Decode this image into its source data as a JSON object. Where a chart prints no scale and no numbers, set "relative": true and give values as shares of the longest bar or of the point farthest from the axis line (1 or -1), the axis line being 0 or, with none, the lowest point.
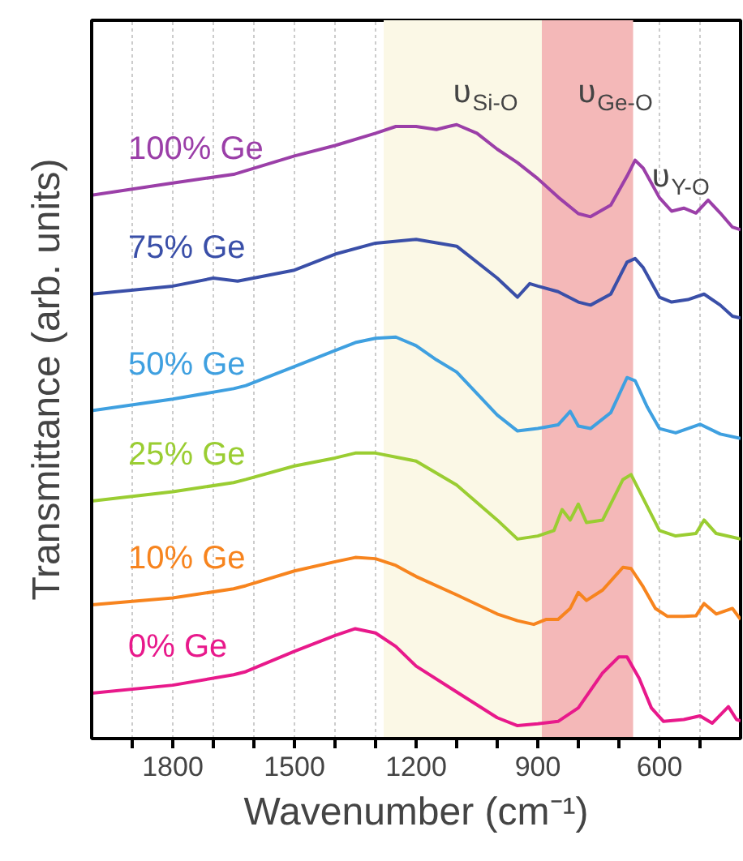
{
  "chart_data": {
    "type": "line",
    "relative": true,
    "xlabel": "Wavenumber (cm⁻¹)",
    "ylabel": "Transmittance (arb. units)",
    "xlim": [
      2000,
      400
    ],
    "xticks": [
      {
        "value": 1900,
        "label": null
      },
      1800,
      {
        "value": 1700,
        "label": null
      },
      {
        "value": 1600,
        "label": null
      },
      1500,
      {
        "value": 1400,
        "label": null
      },
      {
        "value": 1300,
        "label": null
      },
      1200,
      {
        "value": 1100,
        "label": null
      },
      {
        "value": 1000,
        "label": null
      },
      900,
      {
        "value": 800,
        "label": null
      },
      {
        "value": 700,
        "label": null
      },
      600,
      {
        "value": 500,
        "label": null
      }
    ],
    "grid": "x",
    "line_style": "solid",
    "marker": "none",
    "bands": [
      {
        "axis": "x",
        "from": 1280,
        "to": 890,
        "label": "υ$_{Si-O}$",
        "color": "#fbf8e6"
      },
      {
        "axis": "x",
        "from": 890,
        "to": 665,
        "label": "υ$_{Ge-O}$",
        "color": "#f4b8b8"
      }
    ],
    "annotations": [
      "υ$_{Y-O}$"
    ],
    "series": [
      {
        "name": "100% Ge",
        "color": "#9b3fa8",
        "x": [
          2000,
          1800,
          1650,
          1500,
          1400,
          1300,
          1250,
          1200,
          1150,
          1120,
          1100,
          1050,
          1000,
          950,
          900,
          850,
          800,
          770,
          720,
          680,
          660,
          640,
          600,
          570,
          540,
          510,
          480,
          450,
          420,
          400
        ],
        "values": [
          0.885,
          0.905,
          0.919,
          0.949,
          0.966,
          0.986,
          0.997,
          0.997,
          0.992,
          0.997,
          1.0,
          0.986,
          0.96,
          0.938,
          0.912,
          0.882,
          0.855,
          0.85,
          0.869,
          0.916,
          0.942,
          0.929,
          0.881,
          0.859,
          0.864,
          0.856,
          0.877,
          0.856,
          0.833,
          0.829
        ]
      },
      {
        "name": "75% Ge",
        "color": "#3a4fa8",
        "x": [
          2000,
          1800,
          1700,
          1640,
          1500,
          1400,
          1300,
          1200,
          1100,
          1000,
          950,
          920,
          900,
          850,
          800,
          770,
          720,
          680,
          660,
          640,
          600,
          570,
          530,
          490,
          450,
          420,
          400
        ],
        "values": [
          0.724,
          0.737,
          0.75,
          0.745,
          0.763,
          0.789,
          0.807,
          0.813,
          0.802,
          0.75,
          0.719,
          0.741,
          0.737,
          0.728,
          0.711,
          0.706,
          0.724,
          0.776,
          0.782,
          0.767,
          0.719,
          0.711,
          0.715,
          0.724,
          0.706,
          0.688,
          0.685
        ]
      },
      {
        "name": "50% Ge",
        "color": "#3fa0e0",
        "x": [
          2000,
          1800,
          1650,
          1620,
          1500,
          1400,
          1350,
          1300,
          1250,
          1200,
          1150,
          1100,
          1050,
          1000,
          950,
          900,
          850,
          820,
          800,
          770,
          720,
          680,
          660,
          630,
          600,
          560,
          500,
          450,
          400
        ],
        "values": [
          0.534,
          0.553,
          0.57,
          0.575,
          0.606,
          0.632,
          0.645,
          0.652,
          0.654,
          0.64,
          0.617,
          0.597,
          0.562,
          0.527,
          0.501,
          0.505,
          0.511,
          0.533,
          0.509,
          0.505,
          0.531,
          0.588,
          0.583,
          0.54,
          0.505,
          0.498,
          0.512,
          0.496,
          0.489
        ]
      },
      {
        "name": "25% Ge",
        "color": "#9acd32",
        "x": [
          2000,
          1800,
          1650,
          1620,
          1500,
          1400,
          1350,
          1300,
          1200,
          1100,
          1000,
          950,
          900,
          860,
          840,
          820,
          800,
          780,
          740,
          690,
          670,
          640,
          600,
          560,
          510,
          490,
          460,
          400
        ],
        "values": [
          0.387,
          0.402,
          0.417,
          0.422,
          0.444,
          0.457,
          0.465,
          0.465,
          0.452,
          0.413,
          0.356,
          0.325,
          0.33,
          0.339,
          0.373,
          0.356,
          0.382,
          0.352,
          0.356,
          0.422,
          0.43,
          0.391,
          0.339,
          0.33,
          0.334,
          0.356,
          0.334,
          0.325
        ]
      },
      {
        "name": "10% Ge",
        "color": "#f7841e",
        "x": [
          2000,
          1800,
          1650,
          1620,
          1500,
          1400,
          1350,
          1300,
          1250,
          1200,
          1100,
          1000,
          950,
          910,
          880,
          850,
          820,
          800,
          780,
          740,
          690,
          670,
          640,
          610,
          580,
          540,
          510,
          490,
          460,
          420,
          400
        ],
        "values": [
          0.218,
          0.229,
          0.244,
          0.249,
          0.273,
          0.288,
          0.295,
          0.293,
          0.282,
          0.264,
          0.234,
          0.203,
          0.192,
          0.186,
          0.194,
          0.194,
          0.212,
          0.238,
          0.225,
          0.242,
          0.279,
          0.277,
          0.247,
          0.212,
          0.199,
          0.199,
          0.2,
          0.22,
          0.203,
          0.212,
          0.194
        ]
      },
      {
        "name": "0% Ge",
        "color": "#e8198b",
        "x": [
          2000,
          1800,
          1650,
          1620,
          1500,
          1400,
          1350,
          1300,
          1250,
          1200,
          1100,
          1000,
          950,
          900,
          850,
          800,
          740,
          700,
          680,
          650,
          620,
          590,
          540,
          500,
          470,
          430,
          410,
          400
        ],
        "values": [
          0.074,
          0.087,
          0.104,
          0.109,
          0.142,
          0.168,
          0.179,
          0.172,
          0.15,
          0.118,
          0.076,
          0.034,
          0.021,
          0.024,
          0.028,
          0.05,
          0.107,
          0.133,
          0.133,
          0.098,
          0.05,
          0.028,
          0.031,
          0.037,
          0.025,
          0.052,
          0.031,
          0.029
        ]
      }
    ]
  }
}
